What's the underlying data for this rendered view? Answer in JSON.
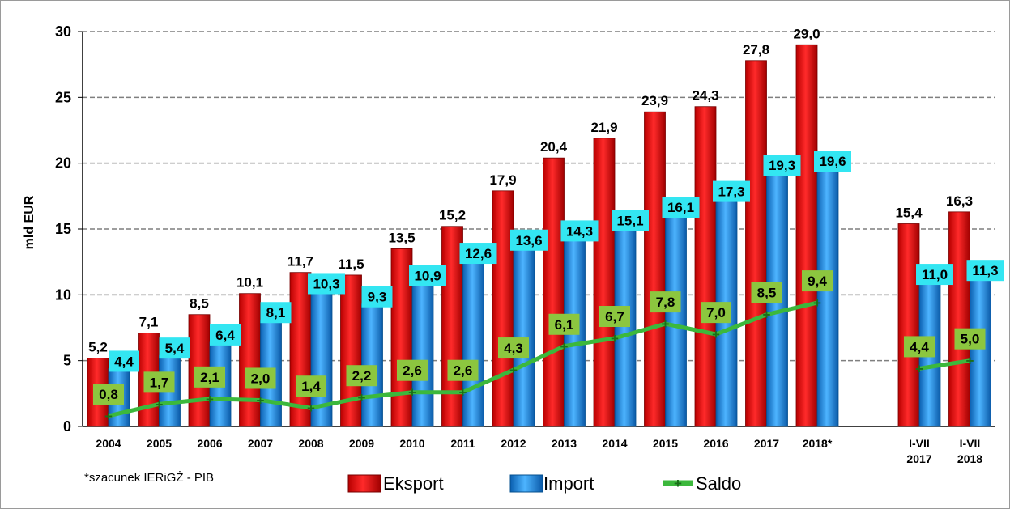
{
  "chart_data": {
    "type": "bar",
    "ylabel": "mld EUR",
    "ylim": [
      0,
      30
    ],
    "yticks": [
      "0",
      "5",
      "10",
      "15",
      "20",
      "25",
      "30"
    ],
    "grid": true,
    "legend_position": "bottom",
    "categories": [
      "2004",
      "2005",
      "2006",
      "2007",
      "2008",
      "2009",
      "2010",
      "2011",
      "2012",
      "2013",
      "2014",
      "2015",
      "2016",
      "2017",
      "2018*",
      "I-VII 2017",
      "I-VII 2018"
    ],
    "category_lines": [
      [
        "2004"
      ],
      [
        "2005"
      ],
      [
        "2006"
      ],
      [
        "2007"
      ],
      [
        "2008"
      ],
      [
        "2009"
      ],
      [
        "2010"
      ],
      [
        "2011"
      ],
      [
        "2012"
      ],
      [
        "2013"
      ],
      [
        "2014"
      ],
      [
        "2015"
      ],
      [
        "2016"
      ],
      [
        "2017"
      ],
      [
        "2018*"
      ],
      [
        "I-VII",
        "2017"
      ],
      [
        "I-VII",
        "2018"
      ]
    ],
    "series": [
      {
        "name": "Eksport",
        "kind": "bar",
        "color": "#e00000",
        "values": [
          5.2,
          7.1,
          8.5,
          10.1,
          11.7,
          11.5,
          13.5,
          15.2,
          17.9,
          20.4,
          21.9,
          23.9,
          24.3,
          27.8,
          29.0,
          15.4,
          16.3
        ],
        "labels": [
          "5,2",
          "7,1",
          "8,5",
          "10,1",
          "11,7",
          "11,5",
          "13,5",
          "15,2",
          "17,9",
          "20,4",
          "21,9",
          "23,9",
          "24,3",
          "27,8",
          "29,0",
          "15,4",
          "16,3"
        ]
      },
      {
        "name": "Import",
        "kind": "bar",
        "color": "#1f8fe0",
        "values": [
          4.4,
          5.4,
          6.4,
          8.1,
          10.3,
          9.3,
          10.9,
          12.6,
          13.6,
          14.3,
          15.1,
          16.1,
          17.3,
          19.3,
          19.6,
          11.0,
          11.3
        ],
        "labels": [
          "4,4",
          "5,4",
          "6,4",
          "8,1",
          "10,3",
          "9,3",
          "10,9",
          "12,6",
          "13,6",
          "14,3",
          "15,1",
          "16,1",
          "17,3",
          "19,3",
          "19,6",
          "11,0",
          "11,3"
        ]
      },
      {
        "name": "Saldo",
        "kind": "line",
        "color": "#3cb83c",
        "values": [
          0.8,
          1.7,
          2.1,
          2.0,
          1.4,
          2.2,
          2.6,
          2.6,
          4.3,
          6.1,
          6.7,
          7.8,
          7.0,
          8.5,
          9.4,
          4.4,
          5.0
        ],
        "labels": [
          "0,8",
          "1,7",
          "2,1",
          "2,0",
          "1,4",
          "2,2",
          "2,6",
          "2,6",
          "4,3",
          "6,1",
          "6,7",
          "7,8",
          "7,0",
          "8,5",
          "9,4",
          "4,4",
          "5,0"
        ]
      }
    ],
    "line_segments": [
      [
        0,
        14
      ],
      [
        15,
        16
      ]
    ],
    "footnote": "*szacunek IERiGŻ - PIB"
  }
}
